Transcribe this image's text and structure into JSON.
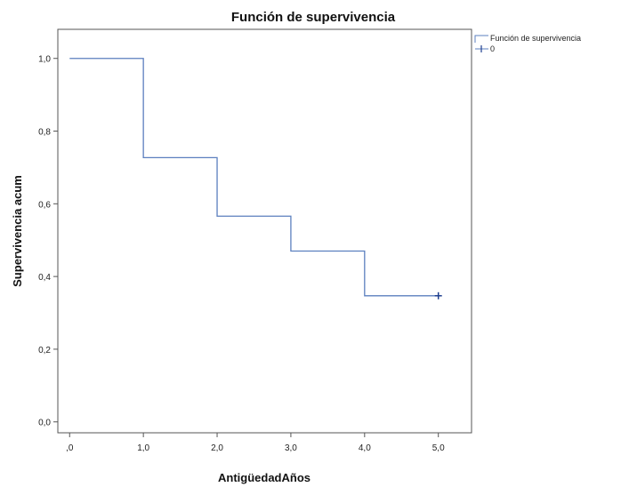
{
  "chart_data": {
    "type": "line",
    "step": true,
    "title": "Función de supervivencia",
    "xlabel": "AntigüedadAños",
    "ylabel": "Supervivencia acum",
    "x_ticks": [
      {
        "value": 0,
        "label": ",0"
      },
      {
        "value": 1,
        "label": "1,0"
      },
      {
        "value": 2,
        "label": "2,0"
      },
      {
        "value": 3,
        "label": "3,0"
      },
      {
        "value": 4,
        "label": "4,0"
      },
      {
        "value": 5,
        "label": "5,0"
      }
    ],
    "y_ticks": [
      {
        "value": 0.0,
        "label": "0,0"
      },
      {
        "value": 0.2,
        "label": "0,2"
      },
      {
        "value": 0.4,
        "label": "0,4"
      },
      {
        "value": 0.6,
        "label": "0,6"
      },
      {
        "value": 0.8,
        "label": "0,8"
      },
      {
        "value": 1.0,
        "label": "1,0"
      }
    ],
    "xlim": [
      -0.16,
      5.45
    ],
    "ylim": [
      -0.03,
      1.08
    ],
    "grid": false,
    "legend_position": "top-right",
    "series": [
      {
        "name": "Función de supervivencia",
        "step_points": [
          {
            "x": 0,
            "y": 1.0
          },
          {
            "x": 1,
            "y": 0.727
          },
          {
            "x": 2,
            "y": 0.566
          },
          {
            "x": 3,
            "y": 0.47
          },
          {
            "x": 4,
            "y": 0.347
          },
          {
            "x": 5,
            "y": 0.347
          }
        ]
      }
    ],
    "censored": {
      "name": "0",
      "points": [
        {
          "x": 5,
          "y": 0.347
        }
      ]
    },
    "colors": {
      "line": "#5b7fbf",
      "censor": "#1f3f8f",
      "plot_background": "#ffffff",
      "frame": "#555555",
      "page_background": "#ffffff"
    }
  }
}
